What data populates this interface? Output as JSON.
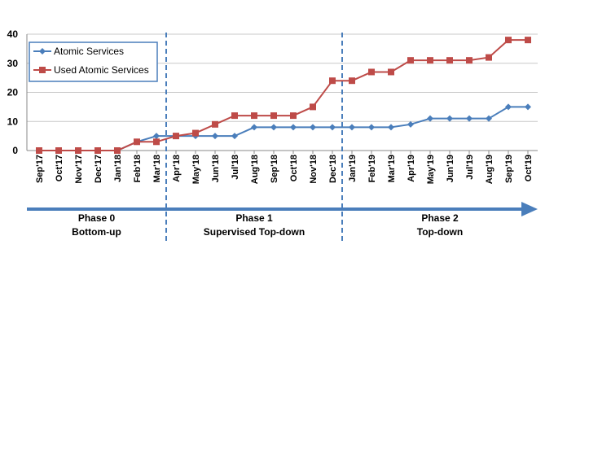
{
  "chart_data": {
    "type": "line",
    "categories": [
      "Sep'17",
      "Oct'17",
      "Nov'17",
      "Dec'17",
      "Jan'18",
      "Feb'18",
      "Mar'18",
      "Apr'18",
      "May'18",
      "Jun'18",
      "Jul'18",
      "Aug'18",
      "Sep'18",
      "Oct'18",
      "Nov'18",
      "Dec'18",
      "Jan'19",
      "Feb'19",
      "Mar'19",
      "Apr'19",
      "May'19",
      "Jun'19",
      "Jul'19",
      "Aug'19",
      "Sep'19",
      "Oct'19"
    ],
    "series": [
      {
        "name": "Atomic Services",
        "color": "#4a7ebb",
        "marker": "diamond",
        "values": [
          0,
          0,
          0,
          0,
          0,
          3,
          5,
          5,
          5,
          5,
          5,
          8,
          8,
          8,
          8,
          8,
          8,
          8,
          8,
          9,
          11,
          11,
          11,
          11,
          15,
          15
        ]
      },
      {
        "name": "Used Atomic Services",
        "color": "#be4b48",
        "marker": "square",
        "values": [
          0,
          0,
          0,
          0,
          0,
          3,
          3,
          5,
          6,
          9,
          12,
          12,
          12,
          12,
          15,
          24,
          24,
          27,
          27,
          31,
          31,
          31,
          31,
          32,
          38,
          38
        ]
      }
    ],
    "ylim": [
      0,
      40
    ],
    "yticks": [
      0,
      10,
      20,
      30,
      40
    ],
    "grid": true,
    "legend": "top-left",
    "phase_dividers_after": [
      "Mar'18",
      "Dec'18"
    ],
    "phases": [
      {
        "name": "Phase 0",
        "description": "Bottom-up"
      },
      {
        "name": "Phase 1",
        "description": "Supervised Top-down"
      },
      {
        "name": "Phase 2",
        "description": "Top-down"
      }
    ],
    "arrow_color": "#4a7ebb",
    "grid_color": "#c8c8c8",
    "divider_color": "#4a7ebb"
  }
}
